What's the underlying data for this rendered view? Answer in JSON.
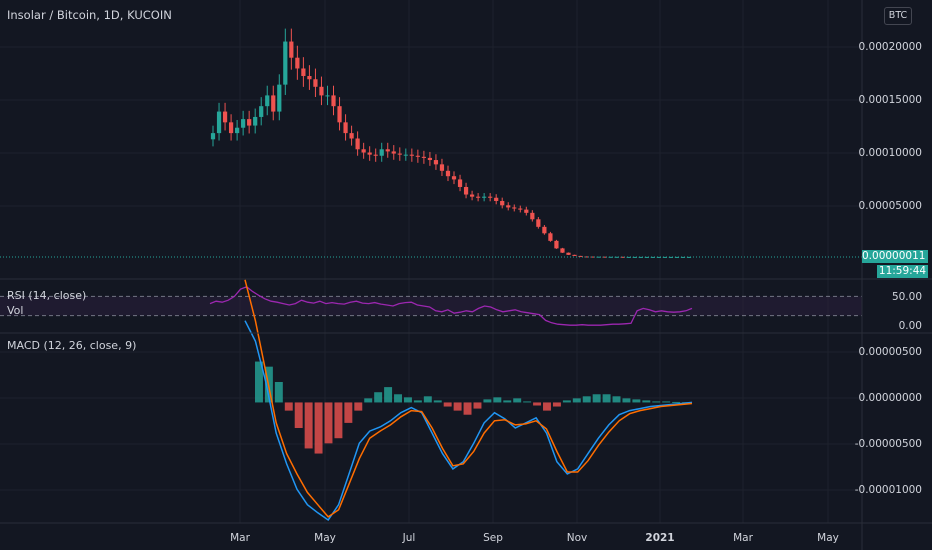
{
  "header": {
    "title": "Insolar / Bitcoin, 1D, KUCOIN",
    "currency_button": "BTC"
  },
  "price_tag": {
    "value": "0.00000011",
    "countdown": "11:59:44"
  },
  "colors": {
    "background": "#131722",
    "up": "#26a69a",
    "down": "#ef5350",
    "rsi": "#9c27b0",
    "rsi_band": "#2a1f3d",
    "macd": "#2196f3",
    "signal": "#ff6d00",
    "grid": "#1e222d"
  },
  "chart_data": [
    {
      "type": "candlestick",
      "title": "Insolar / Bitcoin, 1D, KUCOIN",
      "x_tick_labels": [
        "Mar",
        "May",
        "Jul",
        "Sep",
        "Nov",
        "2021",
        "Mar",
        "May"
      ],
      "y_tick_labels": [
        "0.00020000",
        "0.00015000",
        "0.00010000",
        "0.00005000"
      ],
      "ylim": [
        0,
        0.00022
      ],
      "grid": true,
      "series": [
        {
          "name": "close",
          "values": [
            0.000115,
            0.000135,
            0.000125,
            0.000115,
            0.00012,
            0.000128,
            0.000122,
            0.00013,
            0.00014,
            0.00015,
            0.000135,
            0.00016,
            0.0002,
            0.000185,
            0.000175,
            0.000168,
            0.000165,
            0.000158,
            0.00015,
            0.00015,
            0.00014,
            0.000125,
            0.000115,
            0.00011,
            0.0001,
            9.7e-05,
            9.5e-05,
            9.4e-05,
            0.0001,
            9.8e-05,
            9.6e-05,
            9.5e-05,
            9.5e-05,
            9.4e-05,
            9.3e-05,
            9.2e-05,
            9e-05,
            8.6e-05,
            8e-05,
            7.5e-05,
            7.2e-05,
            6.5e-05,
            5.8e-05,
            5.6e-05,
            5.5e-05,
            5.6e-05,
            5.5e-05,
            5.2e-05,
            4.8e-05,
            4.6e-05,
            4.5e-05,
            4.4e-05,
            4.1e-05,
            3.5e-05,
            2.8e-05,
            2.2e-05,
            1.5e-05,
            8e-06,
            4e-06,
            2e-06,
            1e-06,
            5e-07,
            4e-07,
            3e-07,
            3e-07,
            2e-07,
            2e-07,
            2e-07,
            1e-07,
            1e-07,
            1e-07,
            1e-07,
            1e-07,
            1e-07,
            1e-07,
            1e-07,
            1e-07,
            1e-07,
            1e-07,
            1.1e-07
          ]
        }
      ]
    },
    {
      "type": "line",
      "title": "RSI (14, close)",
      "y_tick_labels": [
        "50.00",
        "0.00"
      ],
      "bands": [
        70,
        30
      ],
      "ylim": [
        0,
        100
      ],
      "series": [
        {
          "name": "RSI",
          "values": [
            55,
            60,
            58,
            62,
            70,
            85,
            90,
            80,
            72,
            65,
            60,
            58,
            55,
            52,
            55,
            62,
            58,
            56,
            60,
            55,
            57,
            55,
            54,
            58,
            60,
            56,
            55,
            57,
            54,
            52,
            50,
            55,
            57,
            58,
            52,
            50,
            48,
            40,
            38,
            42,
            35,
            37,
            40,
            38,
            45,
            50,
            48,
            42,
            38,
            40,
            42,
            38,
            36,
            34,
            32,
            20,
            15,
            12,
            11,
            10,
            10,
            11,
            10,
            10,
            10,
            11,
            12,
            12,
            13,
            14,
            40,
            45,
            42,
            38,
            40,
            38,
            37,
            38,
            40,
            45
          ]
        }
      ],
      "overlay_label": "Vol"
    },
    {
      "type": "line",
      "title": "MACD (12, 26, close, 9)",
      "y_tick_labels": [
        "0.00000500",
        "0.00000000",
        "-0.00000500",
        "-0.00001000"
      ],
      "ylim": [
        -1.15e-05,
        6.5e-06
      ],
      "series": [
        {
          "name": "MACD",
          "values": [
            8e-06,
            6e-06,
            2e-06,
            -3e-06,
            -6e-06,
            -8.5e-06,
            -1e-05,
            -1.08e-05,
            -1.15e-05,
            -1e-05,
            -7e-06,
            -4e-06,
            -2.8e-06,
            -2.4e-06,
            -1.8e-06,
            -1e-06,
            -5e-07,
            -1e-06,
            -3e-06,
            -5e-06,
            -6.5e-06,
            -5.8e-06,
            -4e-06,
            -2e-06,
            -1e-06,
            -1.6e-06,
            -2.5e-06,
            -2e-06,
            -1.5e-06,
            -3e-06,
            -5.8e-06,
            -7e-06,
            -6.5e-06,
            -5e-06,
            -3.5e-06,
            -2.2e-06,
            -1.2e-06,
            -8e-07,
            -6e-07,
            -4e-07,
            -3e-07,
            -2e-07,
            -1e-07,
            0
          ]
        },
        {
          "name": "Signal",
          "values": [
            1.2e-05,
            8e-06,
            3e-06,
            -2e-06,
            -5e-06,
            -7e-06,
            -8.8e-06,
            -1e-05,
            -1.12e-05,
            -1.05e-05,
            -8e-06,
            -5.5e-06,
            -3.5e-06,
            -2.8e-06,
            -2.2e-06,
            -1.4e-06,
            -8e-07,
            -9e-07,
            -2.5e-06,
            -4.5e-06,
            -6.2e-06,
            -6e-06,
            -4.8e-06,
            -3e-06,
            -1.8e-06,
            -1.7e-06,
            -2.2e-06,
            -2.1e-06,
            -1.8e-06,
            -2.6e-06,
            -4.8e-06,
            -6.8e-06,
            -6.8e-06,
            -5.7e-06,
            -4.2e-06,
            -2.9e-06,
            -1.8e-06,
            -1.1e-06,
            -8e-07,
            -6e-07,
            -4e-07,
            -3e-07,
            -2e-07,
            -1e-07
          ]
        },
        {
          "name": "Histogram",
          "values": [
            4e-06,
            3.5e-06,
            2e-06,
            -8e-07,
            -2.5e-06,
            -4.5e-06,
            -5e-06,
            -4e-06,
            -3.5e-06,
            -2e-06,
            -8e-07,
            4e-07,
            1e-06,
            1.5e-06,
            8e-07,
            5e-07,
            2e-07,
            6e-07,
            2e-07,
            -4e-07,
            -8e-07,
            -1.2e-06,
            -6e-07,
            3e-07,
            5e-07,
            2e-07,
            4e-07,
            1e-07,
            -3e-07,
            -8e-07,
            -4e-07,
            2e-07,
            4e-07,
            6e-07,
            8e-07,
            8e-07,
            6e-07,
            4e-07,
            3e-07,
            2e-07,
            1e-07,
            1e-07,
            5e-08,
            2e-08
          ]
        }
      ]
    }
  ]
}
